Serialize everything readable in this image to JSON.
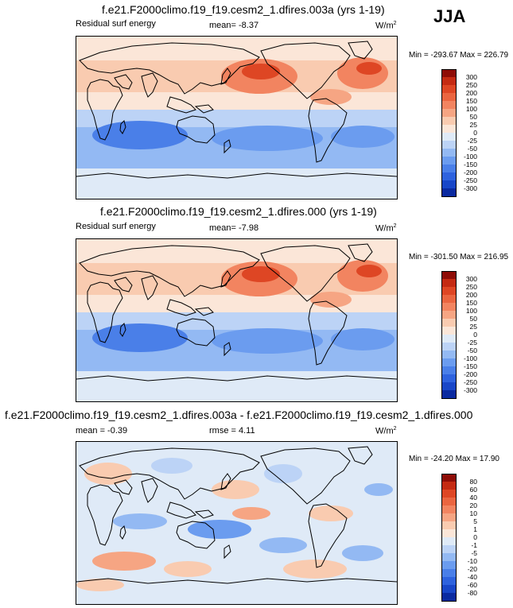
{
  "season": "JJA",
  "colors": {
    "scale": [
      "#00007a",
      "#0a2aa0",
      "#1846c8",
      "#2e62de",
      "#4a7fe8",
      "#6b9cef",
      "#93b9f3",
      "#bcd3f6",
      "#dfeaf7",
      "#fbe6d8",
      "#f9cbb0",
      "#f6a583",
      "#f28460",
      "#ea6540",
      "#de4624",
      "#c42a12",
      "#8e0c06"
    ],
    "land_outline": "#000000"
  },
  "panels": [
    {
      "title": "f.e21.F2000climo.f19_f19.cesm2_1.dfires.003a (yrs 1-19)",
      "left_label": "Residual surf energy",
      "center_label": "mean=  -8.37",
      "units": "W/m",
      "units_exp": "2",
      "minmax": "Min = -293.67 Max = 226.79",
      "colorbar_ticks": [
        "300",
        "250",
        "200",
        "150",
        "100",
        "50",
        "25",
        "0",
        "-25",
        "-50",
        "-100",
        "-150",
        "-200",
        "-250",
        "-300"
      ]
    },
    {
      "title": "f.e21.F2000climo.f19_f19.cesm2_1.dfires.000 (yrs 1-19)",
      "left_label": "Residual surf energy",
      "center_label": "mean=  -7.98",
      "units": "W/m",
      "units_exp": "2",
      "minmax": "Min = -301.50 Max = 216.95",
      "colorbar_ticks": [
        "300",
        "250",
        "200",
        "150",
        "100",
        "50",
        "25",
        "0",
        "-25",
        "-50",
        "-100",
        "-150",
        "-200",
        "-250",
        "-300"
      ]
    },
    {
      "title": "f.e21.F2000climo.f19_f19.cesm2_1.dfires.003a - f.e21.F2000climo.f19_f19.cesm2_1.dfires.000",
      "left_label": "mean =  -0.39",
      "center_label": "rmse =  4.11",
      "units": "W/m",
      "units_exp": "2",
      "minmax": "Min = -24.20 Max =  17.90",
      "colorbar_ticks": [
        "80",
        "60",
        "40",
        "20",
        "10",
        "5",
        "1",
        "0",
        "-1",
        "-5",
        "-10",
        "-20",
        "-40",
        "-60",
        "-80"
      ]
    }
  ],
  "chart_data": [
    {
      "type": "heatmap",
      "title": "f.e21.F2000climo.f19_f19.cesm2_1.dfires.003a (yrs 1-19)",
      "variable": "Residual surf energy",
      "season": "JJA",
      "units": "W/m2",
      "mean": -8.37,
      "min": -293.67,
      "max": 226.79,
      "contour_levels": [
        -300,
        -250,
        -200,
        -150,
        -100,
        -50,
        -25,
        0,
        25,
        50,
        100,
        150,
        200,
        250,
        300
      ]
    },
    {
      "type": "heatmap",
      "title": "f.e21.F2000climo.f19_f19.cesm2_1.dfires.000 (yrs 1-19)",
      "variable": "Residual surf energy",
      "season": "JJA",
      "units": "W/m2",
      "mean": -7.98,
      "min": -301.5,
      "max": 216.95,
      "contour_levels": [
        -300,
        -250,
        -200,
        -150,
        -100,
        -50,
        -25,
        0,
        25,
        50,
        100,
        150,
        200,
        250,
        300
      ]
    },
    {
      "type": "heatmap",
      "title": "f.e21.F2000climo.f19_f19.cesm2_1.dfires.003a - f.e21.F2000climo.f19_f19.cesm2_1.dfires.000",
      "season": "JJA",
      "units": "W/m2",
      "mean": -0.39,
      "rmse": 4.11,
      "min": -24.2,
      "max": 17.9,
      "contour_levels": [
        -80,
        -60,
        -40,
        -20,
        -10,
        -5,
        -1,
        0,
        1,
        5,
        10,
        20,
        40,
        60,
        80
      ]
    }
  ]
}
